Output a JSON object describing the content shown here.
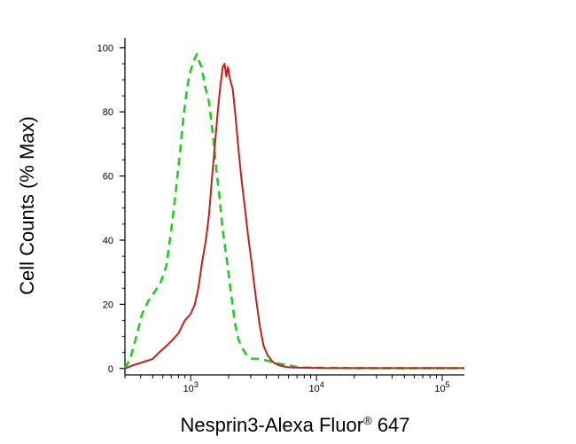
{
  "chart_data": {
    "type": "line",
    "xlabel": "Nesprin3-Alexa Fluor",
    "xlabel_superscript": "®",
    "xlabel_suffix": " 647",
    "ylabel": "Cell Counts (% Max)",
    "x_scale": "log",
    "xlim": [
      300,
      150000
    ],
    "ylim": [
      -2,
      103
    ],
    "y_ticks": [
      {
        "value": 0,
        "label": "0"
      },
      {
        "value": 20,
        "label": "20"
      },
      {
        "value": 40,
        "label": "40"
      },
      {
        "value": 60,
        "label": "60"
      },
      {
        "value": 80,
        "label": "80"
      },
      {
        "value": 100,
        "label": "100"
      }
    ],
    "x_ticks": [
      {
        "value": 1000,
        "base": "10",
        "exp": "3"
      },
      {
        "value": 10000,
        "base": "10",
        "exp": "4"
      },
      {
        "value": 100000,
        "base": "10",
        "exp": "5"
      }
    ],
    "grid": false,
    "series": [
      {
        "color": "#22cc22",
        "style": "dashed",
        "points": [
          [
            300,
            0
          ],
          [
            330,
            3
          ],
          [
            370,
            10
          ],
          [
            410,
            17
          ],
          [
            460,
            21
          ],
          [
            520,
            24
          ],
          [
            580,
            27
          ],
          [
            640,
            32
          ],
          [
            700,
            43
          ],
          [
            760,
            55
          ],
          [
            820,
            67
          ],
          [
            880,
            79
          ],
          [
            940,
            88
          ],
          [
            1000,
            93
          ],
          [
            1060,
            96
          ],
          [
            1120,
            98
          ],
          [
            1160,
            96
          ],
          [
            1220,
            94
          ],
          [
            1300,
            88
          ],
          [
            1400,
            83
          ],
          [
            1500,
            73
          ],
          [
            1600,
            62
          ],
          [
            1700,
            53
          ],
          [
            1800,
            43
          ],
          [
            1950,
            33
          ],
          [
            2100,
            23
          ],
          [
            2250,
            14
          ],
          [
            2400,
            9
          ],
          [
            2600,
            6
          ],
          [
            2800,
            4
          ],
          [
            3100,
            3
          ],
          [
            3500,
            3
          ],
          [
            4000,
            2.5
          ],
          [
            4500,
            2
          ],
          [
            5000,
            1.5
          ],
          [
            6000,
            1
          ],
          [
            7000,
            0.5
          ],
          [
            8000,
            0.3
          ],
          [
            10000,
            0.2
          ],
          [
            20000,
            0.1
          ],
          [
            50000,
            0.1
          ],
          [
            150000,
            0.1
          ]
        ]
      },
      {
        "color": "#c41e1e",
        "style": "solid",
        "points": [
          [
            300,
            0
          ],
          [
            350,
            1
          ],
          [
            420,
            2
          ],
          [
            500,
            3
          ],
          [
            560,
            5
          ],
          [
            640,
            7
          ],
          [
            720,
            9
          ],
          [
            800,
            11
          ],
          [
            900,
            15
          ],
          [
            1000,
            17
          ],
          [
            1080,
            20
          ],
          [
            1150,
            25
          ],
          [
            1230,
            33
          ],
          [
            1320,
            40
          ],
          [
            1400,
            48
          ],
          [
            1480,
            60
          ],
          [
            1560,
            70
          ],
          [
            1640,
            80
          ],
          [
            1720,
            88
          ],
          [
            1800,
            94
          ],
          [
            1860,
            95
          ],
          [
            1920,
            91
          ],
          [
            1980,
            94
          ],
          [
            2060,
            90
          ],
          [
            2160,
            87
          ],
          [
            2280,
            78
          ],
          [
            2400,
            68
          ],
          [
            2550,
            58
          ],
          [
            2700,
            50
          ],
          [
            2850,
            42
          ],
          [
            3050,
            33
          ],
          [
            3300,
            22
          ],
          [
            3550,
            13
          ],
          [
            3800,
            7
          ],
          [
            4100,
            4
          ],
          [
            4500,
            2
          ],
          [
            5000,
            1
          ],
          [
            5700,
            0.5
          ],
          [
            6500,
            0.3
          ],
          [
            8000,
            0.2
          ],
          [
            12000,
            0.1
          ],
          [
            40000,
            0.1
          ],
          [
            150000,
            0.1
          ]
        ]
      }
    ]
  }
}
